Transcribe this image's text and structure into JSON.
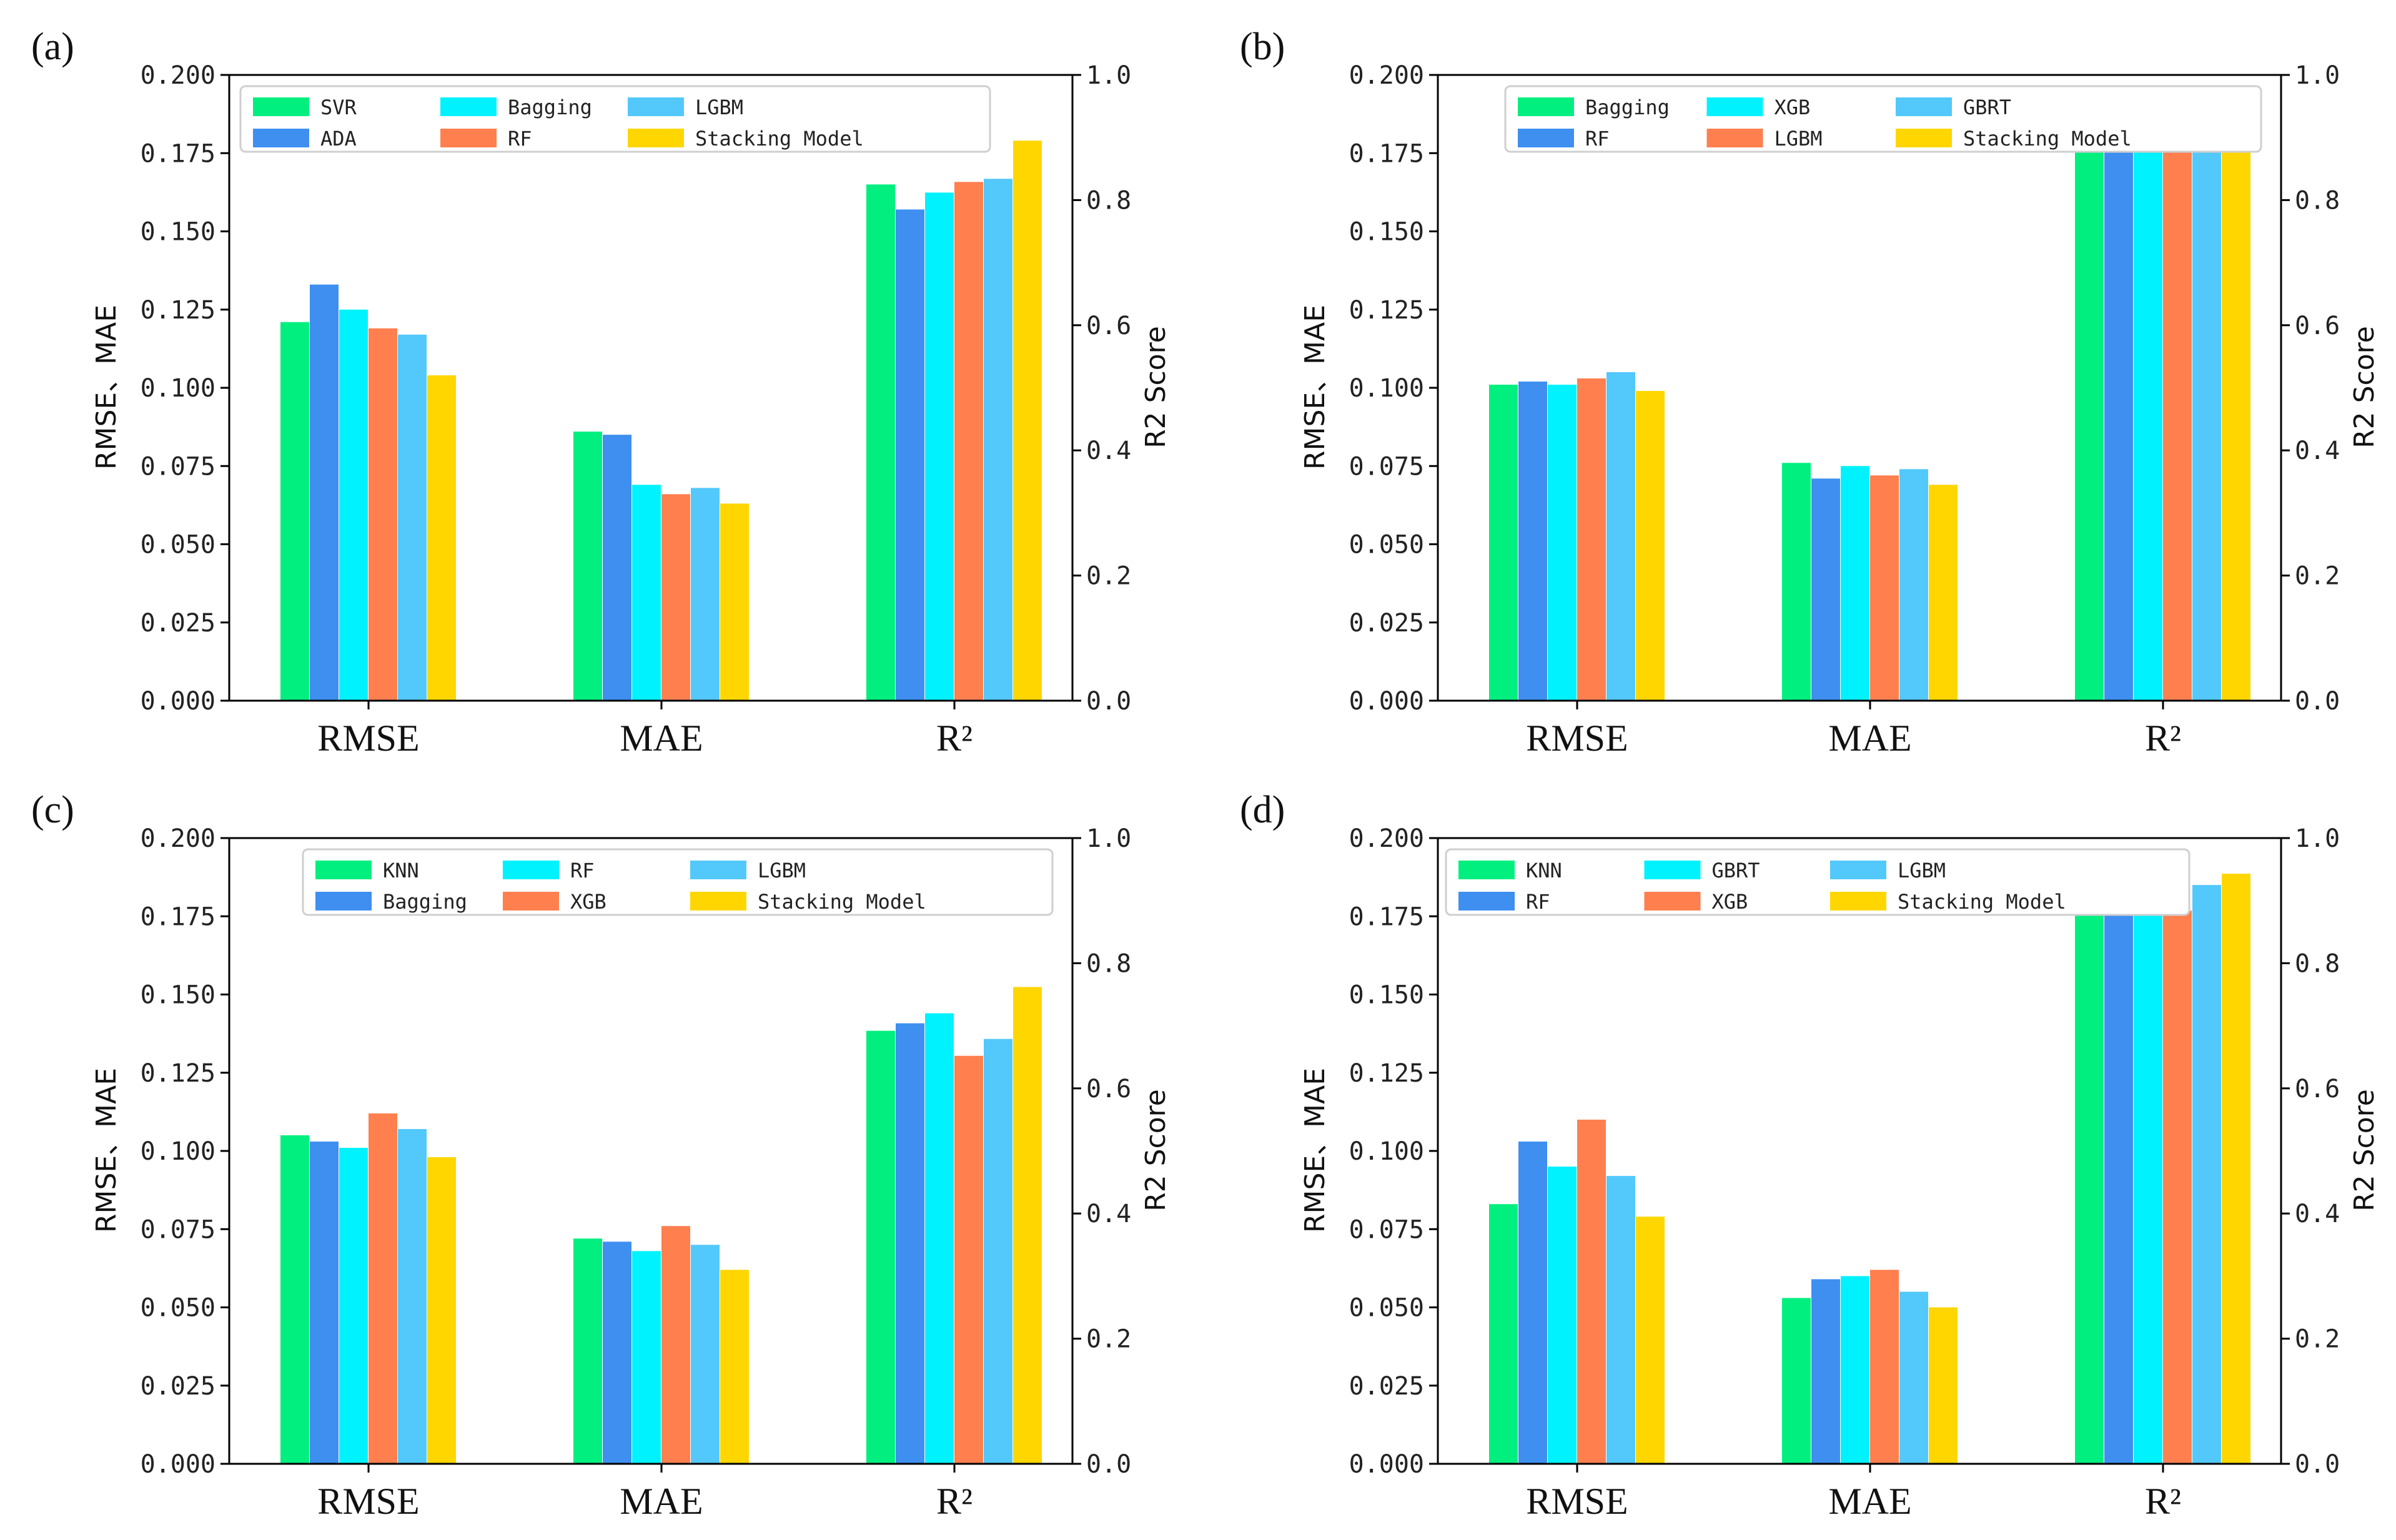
{
  "colors": [
    "#00ef7f",
    "#3e8ff0",
    "#00f2ff",
    "#ff7f4f",
    "#53c8fb",
    "#ffd600"
  ],
  "chart_data": [
    {
      "panel_label": "(a)",
      "type": "bar",
      "categories": [
        "RMSE",
        "MAE",
        "R²"
      ],
      "ylabel": "RMSE、MAE",
      "y2label": "R2 Score",
      "ylim": [
        0,
        0.2
      ],
      "y2lim": [
        0,
        1.0
      ],
      "yticks": [
        "0.000",
        "0.025",
        "0.050",
        "0.075",
        "0.100",
        "0.125",
        "0.150",
        "0.175",
        "0.200"
      ],
      "y2ticks": [
        "0.0",
        "0.2",
        "0.4",
        "0.6",
        "0.8",
        "1.0"
      ],
      "legend": "top",
      "series": [
        {
          "name": "SVR",
          "values": [
            0.121,
            0.086,
            0.825
          ]
        },
        {
          "name": "ADA",
          "values": [
            0.133,
            0.085,
            0.785
          ]
        },
        {
          "name": "Bagging",
          "values": [
            0.125,
            0.069,
            0.812
          ]
        },
        {
          "name": "RF",
          "values": [
            0.119,
            0.066,
            0.829
          ]
        },
        {
          "name": "LGBM",
          "values": [
            0.117,
            0.068,
            0.834
          ]
        },
        {
          "name": "Stacking Model",
          "values": [
            0.104,
            0.063,
            0.895
          ]
        }
      ]
    },
    {
      "panel_label": "(b)",
      "type": "bar",
      "categories": [
        "RMSE",
        "MAE",
        "R²"
      ],
      "ylabel": "RMSE、MAE",
      "y2label": "R2 Score",
      "ylim": [
        0,
        0.2
      ],
      "y2lim": [
        0,
        1.0
      ],
      "yticks": [
        "0.000",
        "0.025",
        "0.050",
        "0.075",
        "0.100",
        "0.125",
        "0.150",
        "0.175",
        "0.200"
      ],
      "y2ticks": [
        "0.0",
        "0.2",
        "0.4",
        "0.6",
        "0.8",
        "1.0"
      ],
      "legend": "top",
      "series": [
        {
          "name": "Bagging",
          "values": [
            0.101,
            0.076,
            0.888
          ]
        },
        {
          "name": "RF",
          "values": [
            0.102,
            0.071,
            0.892
          ]
        },
        {
          "name": "XGB",
          "values": [
            0.101,
            0.075,
            0.889
          ]
        },
        {
          "name": "LGBM",
          "values": [
            0.103,
            0.072,
            0.891
          ]
        },
        {
          "name": "GBRT",
          "values": [
            0.105,
            0.074,
            0.887
          ]
        },
        {
          "name": "Stacking Model",
          "values": [
            0.099,
            0.069,
            0.897
          ]
        }
      ]
    },
    {
      "panel_label": "(c)",
      "type": "bar",
      "categories": [
        "RMSE",
        "MAE",
        "R²"
      ],
      "ylabel": "RMSE、MAE",
      "y2label": "R2 Score",
      "ylim": [
        0,
        0.2
      ],
      "y2lim": [
        0,
        1.0
      ],
      "yticks": [
        "0.000",
        "0.025",
        "0.050",
        "0.075",
        "0.100",
        "0.125",
        "0.150",
        "0.175",
        "0.200"
      ],
      "y2ticks": [
        "0.0",
        "0.2",
        "0.4",
        "0.6",
        "0.8",
        "1.0"
      ],
      "legend": "top",
      "series": [
        {
          "name": "KNN",
          "values": [
            0.105,
            0.072,
            0.692
          ]
        },
        {
          "name": "Bagging",
          "values": [
            0.103,
            0.071,
            0.704
          ]
        },
        {
          "name": "RF",
          "values": [
            0.101,
            0.068,
            0.72
          ]
        },
        {
          "name": "XGB",
          "values": [
            0.112,
            0.076,
            0.652
          ]
        },
        {
          "name": "LGBM",
          "values": [
            0.107,
            0.07,
            0.679
          ]
        },
        {
          "name": "Stacking Model",
          "values": [
            0.098,
            0.062,
            0.762
          ]
        }
      ]
    },
    {
      "panel_label": "(d)",
      "type": "bar",
      "categories": [
        "RMSE",
        "MAE",
        "R²"
      ],
      "ylabel": "RMSE、MAE",
      "y2label": "R2 Score",
      "ylim": [
        0,
        0.2
      ],
      "y2lim": [
        0,
        1.0
      ],
      "yticks": [
        "0.000",
        "0.025",
        "0.050",
        "0.075",
        "0.100",
        "0.125",
        "0.150",
        "0.175",
        "0.200"
      ],
      "y2ticks": [
        "0.0",
        "0.2",
        "0.4",
        "0.6",
        "0.8",
        "1.0"
      ],
      "legend": "top",
      "series": [
        {
          "name": "KNN",
          "values": [
            0.083,
            0.053,
            0.93
          ]
        },
        {
          "name": "RF",
          "values": [
            0.103,
            0.059,
            0.9
          ]
        },
        {
          "name": "GBRT",
          "values": [
            0.095,
            0.06,
            0.918
          ]
        },
        {
          "name": "XGB",
          "values": [
            0.11,
            0.062,
            0.884
          ]
        },
        {
          "name": "LGBM",
          "values": [
            0.092,
            0.055,
            0.925
          ]
        },
        {
          "name": "Stacking Model",
          "values": [
            0.079,
            0.05,
            0.943
          ]
        }
      ]
    }
  ]
}
